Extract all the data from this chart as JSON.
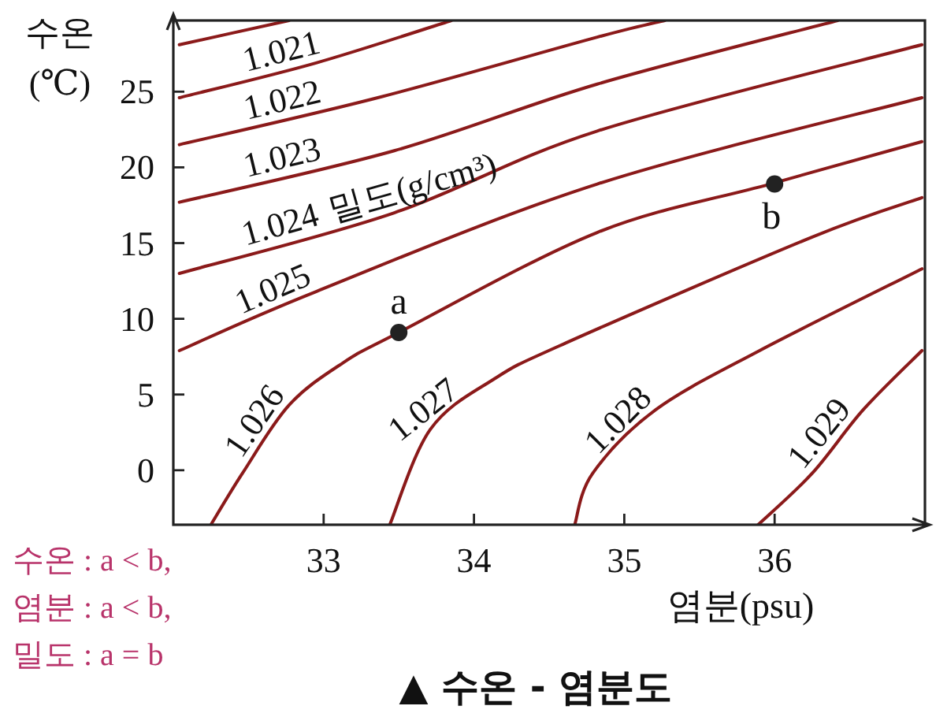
{
  "chart_data": {
    "type": "line",
    "title": "▲ 수온 - 염분도",
    "xlabel": "염분(psu)",
    "ylabel": "수온\n(℃)",
    "xlim": [
      32,
      37
    ],
    "ylim": [
      -3.6,
      29.7
    ],
    "xticks": [
      33,
      34,
      35,
      36
    ],
    "yticks": [
      0,
      5,
      10,
      15,
      20,
      25
    ],
    "series": [
      {
        "color": "#8b1a1a",
        "x": [
          32.04,
          32.77
        ],
        "values": [
          28.1,
          29.7
        ]
      },
      {
        "name": "1.021",
        "color": "#8b1a1a",
        "x": [
          32.04,
          32.95,
          33.85
        ],
        "values": [
          24.6,
          26.9,
          29.7
        ]
      },
      {
        "name": "1.022",
        "color": "#8b1a1a",
        "x": [
          32.04,
          33.36,
          34.82,
          35.27
        ],
        "values": [
          21.5,
          24.6,
          28.6,
          29.7
        ]
      },
      {
        "name": "1.023",
        "color": "#8b1a1a",
        "x": [
          32.04,
          33.47,
          34.82,
          36.42
        ],
        "values": [
          17.7,
          21.1,
          25.5,
          29.7
        ]
      },
      {
        "name": "1.024",
        "color": "#8b1a1a",
        "x": [
          32.04,
          33.47,
          34.82,
          36.98
        ],
        "values": [
          13.0,
          17.0,
          22.4,
          28.1
        ]
      },
      {
        "name": "1.025",
        "color": "#8b1a1a",
        "x": [
          32.04,
          32.95,
          34.82,
          36.98
        ],
        "values": [
          7.9,
          11.8,
          18.9,
          24.6
        ]
      },
      {
        "name": "1.026",
        "color": "#8b1a1a",
        "x": [
          32.25,
          32.46,
          32.77,
          33.13,
          33.5,
          34.82,
          35.97,
          36.98
        ],
        "values": [
          -3.6,
          -0.2,
          4.3,
          7.1,
          9.1,
          15.7,
          18.9,
          21.7
        ]
      },
      {
        "name": "1.027",
        "color": "#8b1a1a",
        "x": [
          33.44,
          33.71,
          34.13,
          34.61,
          36.25,
          36.98
        ],
        "values": [
          -3.6,
          2.7,
          6.0,
          8.4,
          15.4,
          18.0
        ]
      },
      {
        "name": "1.028",
        "color": "#8b1a1a",
        "x": [
          34.67,
          34.79,
          35.21,
          35.9,
          36.98
        ],
        "values": [
          -3.6,
          -0.2,
          4.0,
          7.9,
          13.3
        ]
      },
      {
        "name": "1.029",
        "color": "#8b1a1a",
        "x": [
          35.89,
          36.25,
          36.59,
          36.98
        ],
        "values": [
          -3.6,
          -0.2,
          4.0,
          7.9
        ]
      },
      {
        "name": "a",
        "type": "scatter",
        "marker": "circle",
        "color": "#222222",
        "x": [
          33.5
        ],
        "values": [
          9.1
        ]
      },
      {
        "name": "b",
        "type": "scatter",
        "marker": "circle",
        "color": "#222222",
        "x": [
          36.0
        ],
        "values": [
          18.9
        ]
      }
    ],
    "annotations": [
      "밀도(g/cm³)",
      "수온 : a < b,",
      "염분 : a < b,",
      "밀도 : a = b"
    ]
  }
}
